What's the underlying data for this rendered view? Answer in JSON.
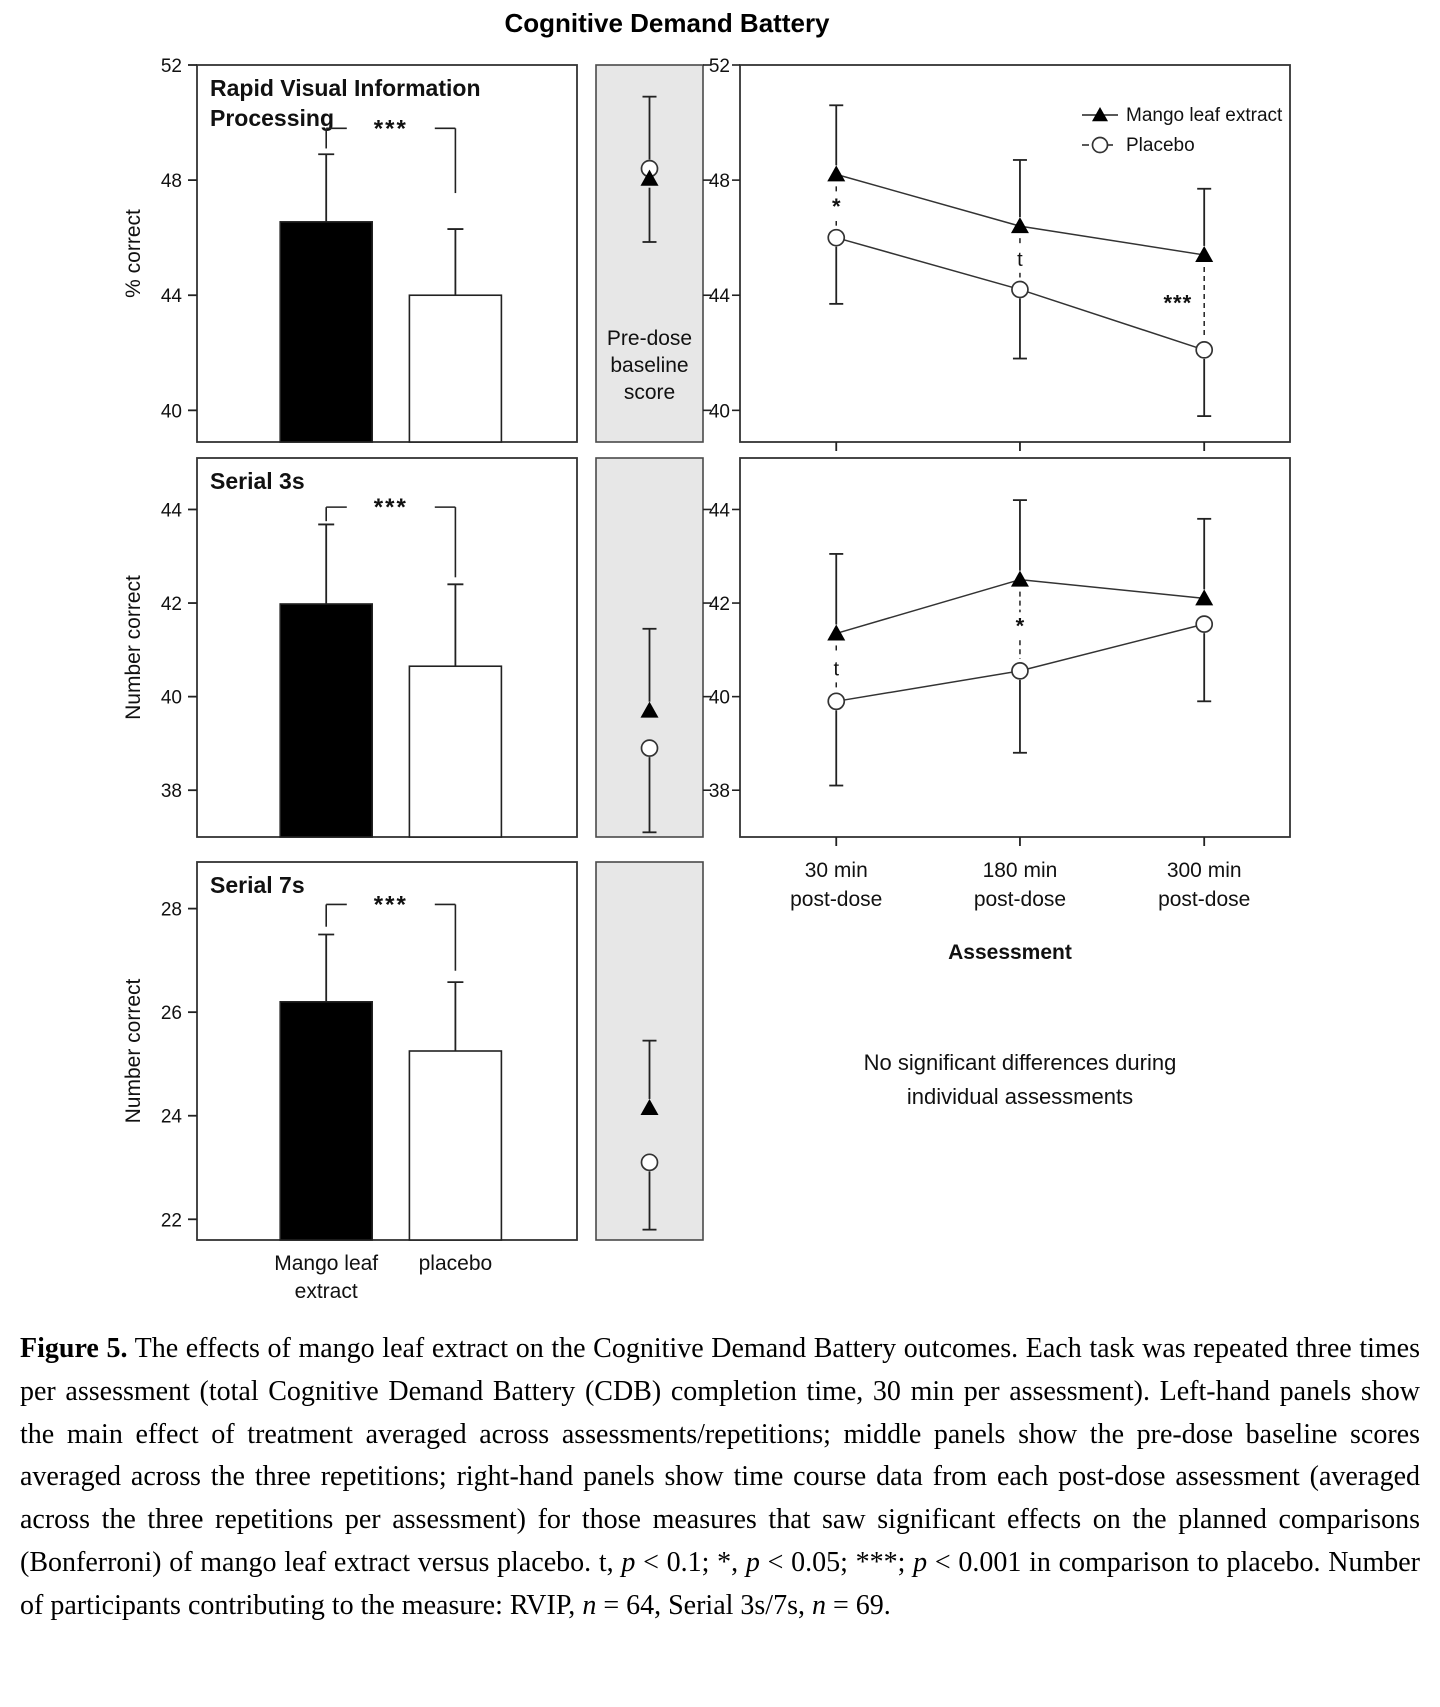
{
  "figure_title": "Cognitive Demand Battery",
  "notes": {
    "line1": "No significant differences during",
    "line2": "individual assessments"
  },
  "caption": {
    "segments": [
      {
        "t": "Figure 5.",
        "b": true
      },
      {
        "t": " The effects of mango leaf extract on the Cognitive Demand Battery outcomes. Each task was repeated three times per assessment (total Cognitive Demand Battery (CDB) completion time, 30 min per assessment). Left-hand panels show the main effect of treatment averaged across assessments/repetitions; middle panels show the pre-dose baseline scores averaged across the three repetitions; right-hand panels show time course data from each post-dose assessment (averaged across the three repetitions per assessment) for those measures that saw significant effects on the planned comparisons (Bonferroni) of mango leaf extract versus placebo. t, "
      },
      {
        "t": "p",
        "i": true
      },
      {
        "t": " < 0.1; *, "
      },
      {
        "t": "p",
        "i": true
      },
      {
        "t": " < 0.05; ***; "
      },
      {
        "t": "p",
        "i": true
      },
      {
        "t": " < 0.001 in comparison to placebo. Number of participants contributing to the measure: RVIP, "
      },
      {
        "t": "n",
        "i": true
      },
      {
        "t": " = 64, Serial 3s/7s, "
      },
      {
        "t": "n",
        "i": true
      },
      {
        "t": " = 69."
      }
    ]
  },
  "chart_data": {
    "figure_title": "Cognitive Demand Battery",
    "legend": {
      "entries": [
        {
          "label": "Mango leaf extract",
          "marker": "triangle"
        },
        {
          "label": "Placebo",
          "marker": "circle"
        }
      ]
    },
    "bar_axis": {
      "categories": [
        [
          "Mango leaf",
          "extract"
        ],
        [
          "placebo"
        ]
      ]
    },
    "time_axis": {
      "categories": [
        [
          "30 min",
          "post-dose"
        ],
        [
          "180 min",
          "post-dose"
        ],
        [
          "300 min",
          "post-dose"
        ]
      ],
      "title": "Assessment"
    },
    "panels": [
      {
        "id": "rvip-bar",
        "type": "bar",
        "row": 0,
        "col": "left",
        "title_lines": [
          "Rapid Visual Information",
          "Processing"
        ],
        "ylabel": "% correct",
        "ylim": [
          38.9,
          52
        ],
        "yticks": [
          40,
          44,
          48,
          52
        ],
        "bars": [
          {
            "name": "Mango leaf extract",
            "value": 46.55,
            "err_up": 2.35,
            "fill": "black"
          },
          {
            "name": "placebo",
            "value": 44.0,
            "err_up": 2.3,
            "fill": "white"
          }
        ],
        "sig": {
          "label": "***",
          "y": 49.8,
          "drop_left_to": 49.1,
          "drop_right_to": 47.55
        }
      },
      {
        "id": "rvip-baseline",
        "type": "baseline",
        "row": 0,
        "col": "mid",
        "ylim": [
          38.9,
          52
        ],
        "points": [
          {
            "marker": "circle",
            "name": "Placebo",
            "value": 48.4,
            "err_up": 2.5
          },
          {
            "marker": "triangle",
            "name": "Mango leaf extract",
            "value": 48.05,
            "err_down": 2.2
          }
        ],
        "label_lines": [
          "Pre-dose",
          "baseline",
          "score"
        ]
      },
      {
        "id": "rvip-time",
        "type": "line",
        "row": 0,
        "col": "right",
        "ylim": [
          38.9,
          52
        ],
        "yticks": [
          40,
          44,
          48,
          52
        ],
        "series": [
          {
            "name": "Mango leaf extract",
            "marker": "triangle",
            "values": [
              48.2,
              46.4,
              45.4
            ],
            "err_up": [
              2.4,
              2.3,
              2.3
            ]
          },
          {
            "name": "Placebo",
            "marker": "circle",
            "values": [
              46.0,
              44.2,
              42.1
            ],
            "err_down": [
              2.3,
              2.4,
              2.3
            ]
          }
        ],
        "sig": [
          {
            "label": "*",
            "side": "center"
          },
          {
            "label": "t",
            "side": "center"
          },
          {
            "label": "***",
            "side": "left"
          }
        ],
        "show_legend": true
      },
      {
        "id": "serial3-bar",
        "type": "bar",
        "row": 1,
        "col": "left",
        "title_lines": [
          "Serial 3s"
        ],
        "ylabel": "Number correct",
        "ylim": [
          37.0,
          45.1
        ],
        "yticks": [
          38,
          40,
          42,
          44
        ],
        "bars": [
          {
            "name": "Mango leaf extract",
            "value": 41.98,
            "err_up": 1.7,
            "fill": "black"
          },
          {
            "name": "placebo",
            "value": 40.65,
            "err_up": 1.75,
            "fill": "white"
          }
        ],
        "sig": {
          "label": "***",
          "y": 44.05,
          "drop_left_to": 43.75,
          "drop_right_to": 42.55
        }
      },
      {
        "id": "serial3-baseline",
        "type": "baseline",
        "row": 1,
        "col": "mid",
        "ylim": [
          37.0,
          45.1
        ],
        "points": [
          {
            "marker": "triangle",
            "name": "Mango leaf extract",
            "value": 39.7,
            "err_up": 1.75
          },
          {
            "marker": "circle",
            "name": "Placebo",
            "value": 38.9,
            "err_down": 1.8
          }
        ]
      },
      {
        "id": "serial3-time",
        "type": "line",
        "row": 1,
        "col": "right",
        "ylim": [
          37.0,
          45.1
        ],
        "yticks": [
          38,
          40,
          42,
          44
        ],
        "series": [
          {
            "name": "Mango leaf extract",
            "marker": "triangle",
            "values": [
              41.35,
              42.5,
              42.1
            ],
            "err_up": [
              1.7,
              1.7,
              1.7
            ]
          },
          {
            "name": "Placebo",
            "marker": "circle",
            "values": [
              39.9,
              40.55,
              41.55
            ],
            "err_down": [
              1.8,
              1.75,
              1.65
            ]
          }
        ],
        "sig": [
          {
            "label": "t",
            "side": "center"
          },
          {
            "label": "*",
            "side": "center"
          },
          null
        ],
        "show_legend": false
      },
      {
        "id": "serial7-bar",
        "type": "bar",
        "row": 2,
        "col": "left",
        "title_lines": [
          "Serial 7s"
        ],
        "ylabel": "Number correct",
        "ylim": [
          21.6,
          28.9
        ],
        "yticks": [
          22,
          24,
          26,
          28
        ],
        "bars": [
          {
            "name": "Mango leaf extract",
            "value": 26.2,
            "err_up": 1.3,
            "fill": "black"
          },
          {
            "name": "placebo",
            "value": 25.25,
            "err_up": 1.33,
            "fill": "white"
          }
        ],
        "sig": {
          "label": "***",
          "y": 28.08,
          "drop_left_to": 27.65,
          "drop_right_to": 26.8
        },
        "show_categories": true
      },
      {
        "id": "serial7-baseline",
        "type": "baseline",
        "row": 2,
        "col": "mid",
        "ylim": [
          21.6,
          28.9
        ],
        "points": [
          {
            "marker": "triangle",
            "name": "Mango leaf extract",
            "value": 24.15,
            "err_up": 1.3
          },
          {
            "marker": "circle",
            "name": "Placebo",
            "value": 23.1,
            "err_down": 1.3
          }
        ]
      }
    ]
  }
}
